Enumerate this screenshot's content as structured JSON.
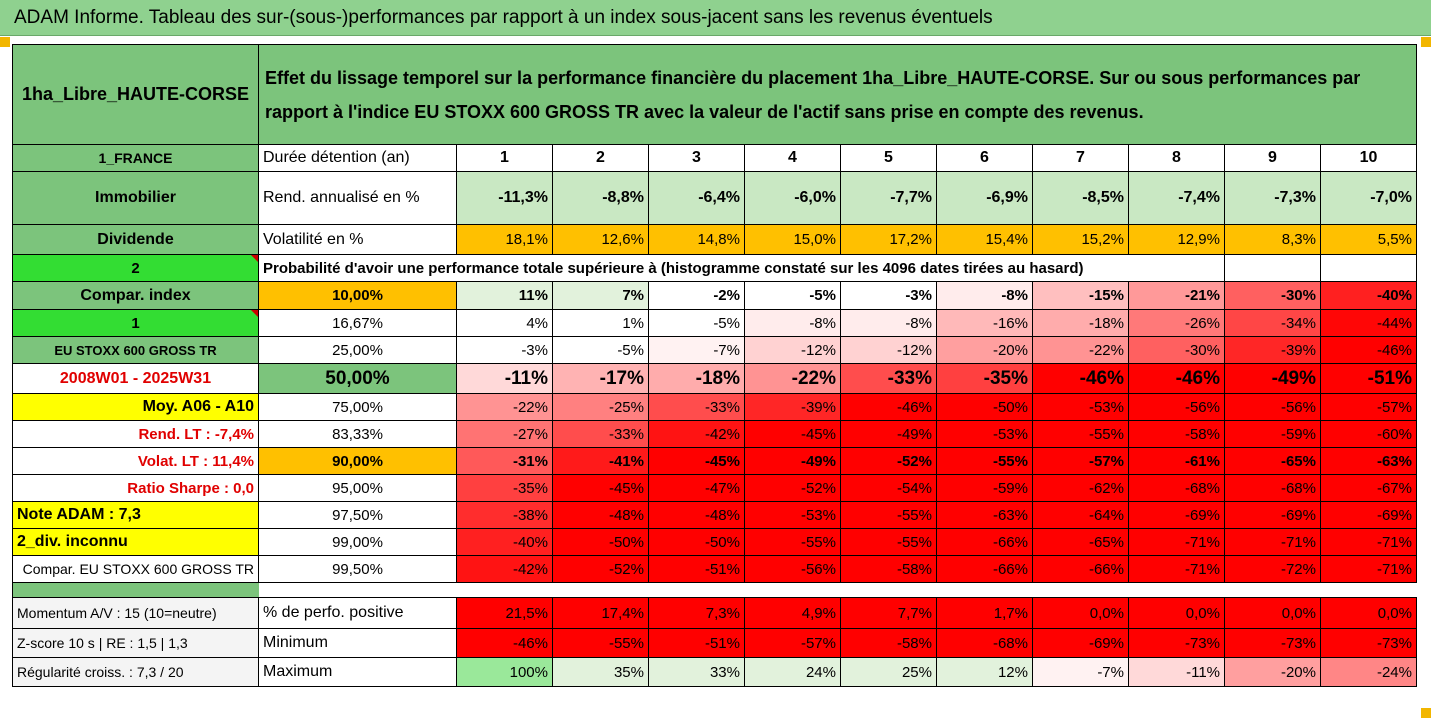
{
  "banner_title": "ADAM Informe. Tableau des sur-(sous-)performances par rapport à un index sous-jacent sans les revenus éventuels",
  "header": {
    "fund_name": "1ha_Libre_HAUTE-CORSE",
    "description": "Effet du lissage temporel sur la performance financière du placement 1ha_Libre_HAUTE-CORSE. Sur ou sous performances par rapport à l'indice EU STOXX 600 GROSS TR avec la valeur de l'actif sans prise en compte des revenus."
  },
  "side": {
    "country": "1_FRANCE",
    "category": "Immobilier",
    "dividend": "Dividende",
    "code2": "2",
    "compar_index": "Compar. index",
    "code1": "1",
    "index_name": "EU STOXX 600 GROSS TR",
    "period": "2008W01 - 2025W31",
    "moy": "Moy. A06 - A10",
    "rend_lt": "Rend. LT :   -7,4%",
    "volat_lt": "Volat. LT :   11,4%",
    "sharpe": "Ratio Sharpe :    0,0",
    "note": "Note ADAM : 7,3",
    "div": "2_div. inconnu",
    "compar_full": "Compar. EU STOXX 600 GROSS TR",
    "momentum": "Momentum A/V : 15 (10=neutre)",
    "zscore": "Z-score 10 s  | RE : 1,5  | 1,3",
    "regularite": "Régularité croiss. : 7,3 / 20"
  },
  "labels": {
    "duree": "Durée détention (an)",
    "rend": "Rend. annualisé en %",
    "vol": "Volatilité en %",
    "proba": "Probabilité d'avoir une performance totale supérieure à (histogramme constaté sur les 4096 dates tirées au hasard)",
    "perf_pos": "% de perfo. positive",
    "minimum": "Minimum",
    "maximum": "Maximum"
  },
  "years": [
    "1",
    "2",
    "3",
    "4",
    "5",
    "6",
    "7",
    "8",
    "9",
    "10"
  ],
  "rend": [
    "-11,3%",
    "-8,8%",
    "-6,4%",
    "-6,0%",
    "-7,7%",
    "-6,9%",
    "-8,5%",
    "-7,4%",
    "-7,3%",
    "-7,0%"
  ],
  "vol": [
    "18,1%",
    "12,6%",
    "14,8%",
    "15,0%",
    "17,2%",
    "15,4%",
    "15,2%",
    "12,9%",
    "8,3%",
    "5,5%"
  ],
  "quantile_rows": [
    {
      "p": "10,00%",
      "v": [
        "11%",
        "7%",
        "-2%",
        "-5%",
        "-3%",
        "-8%",
        "-15%",
        "-21%",
        "-30%",
        "-40%"
      ]
    },
    {
      "p": "16,67%",
      "v": [
        "4%",
        "1%",
        "-5%",
        "-8%",
        "-8%",
        "-16%",
        "-18%",
        "-26%",
        "-34%",
        "-44%"
      ]
    },
    {
      "p": "25,00%",
      "v": [
        "-3%",
        "-5%",
        "-7%",
        "-12%",
        "-12%",
        "-20%",
        "-22%",
        "-30%",
        "-39%",
        "-46%"
      ]
    },
    {
      "p": "50,00%",
      "v": [
        "-11%",
        "-17%",
        "-18%",
        "-22%",
        "-33%",
        "-35%",
        "-46%",
        "-46%",
        "-49%",
        "-51%"
      ]
    },
    {
      "p": "75,00%",
      "v": [
        "-22%",
        "-25%",
        "-33%",
        "-39%",
        "-46%",
        "-50%",
        "-53%",
        "-56%",
        "-56%",
        "-57%"
      ]
    },
    {
      "p": "83,33%",
      "v": [
        "-27%",
        "-33%",
        "-42%",
        "-45%",
        "-49%",
        "-53%",
        "-55%",
        "-58%",
        "-59%",
        "-60%"
      ]
    },
    {
      "p": "90,00%",
      "v": [
        "-31%",
        "-41%",
        "-45%",
        "-49%",
        "-52%",
        "-55%",
        "-57%",
        "-61%",
        "-65%",
        "-63%"
      ]
    },
    {
      "p": "95,00%",
      "v": [
        "-35%",
        "-45%",
        "-47%",
        "-52%",
        "-54%",
        "-59%",
        "-62%",
        "-68%",
        "-68%",
        "-67%"
      ]
    },
    {
      "p": "97,50%",
      "v": [
        "-38%",
        "-48%",
        "-48%",
        "-53%",
        "-55%",
        "-63%",
        "-64%",
        "-69%",
        "-69%",
        "-69%"
      ]
    },
    {
      "p": "99,00%",
      "v": [
        "-40%",
        "-50%",
        "-50%",
        "-55%",
        "-55%",
        "-66%",
        "-65%",
        "-71%",
        "-71%",
        "-71%"
      ]
    },
    {
      "p": "99,50%",
      "v": [
        "-42%",
        "-52%",
        "-51%",
        "-56%",
        "-58%",
        "-66%",
        "-66%",
        "-71%",
        "-72%",
        "-71%"
      ]
    }
  ],
  "perf_pos": [
    "21,5%",
    "17,4%",
    "7,3%",
    "4,9%",
    "7,7%",
    "1,7%",
    "0,0%",
    "0,0%",
    "0,0%",
    "0,0%"
  ],
  "minimum": [
    "-46%",
    "-55%",
    "-51%",
    "-57%",
    "-58%",
    "-68%",
    "-69%",
    "-73%",
    "-73%",
    "-73%"
  ],
  "maximum": [
    "100%",
    "35%",
    "33%",
    "24%",
    "25%",
    "12%",
    "-7%",
    "-11%",
    "-20%",
    "-24%"
  ]
}
